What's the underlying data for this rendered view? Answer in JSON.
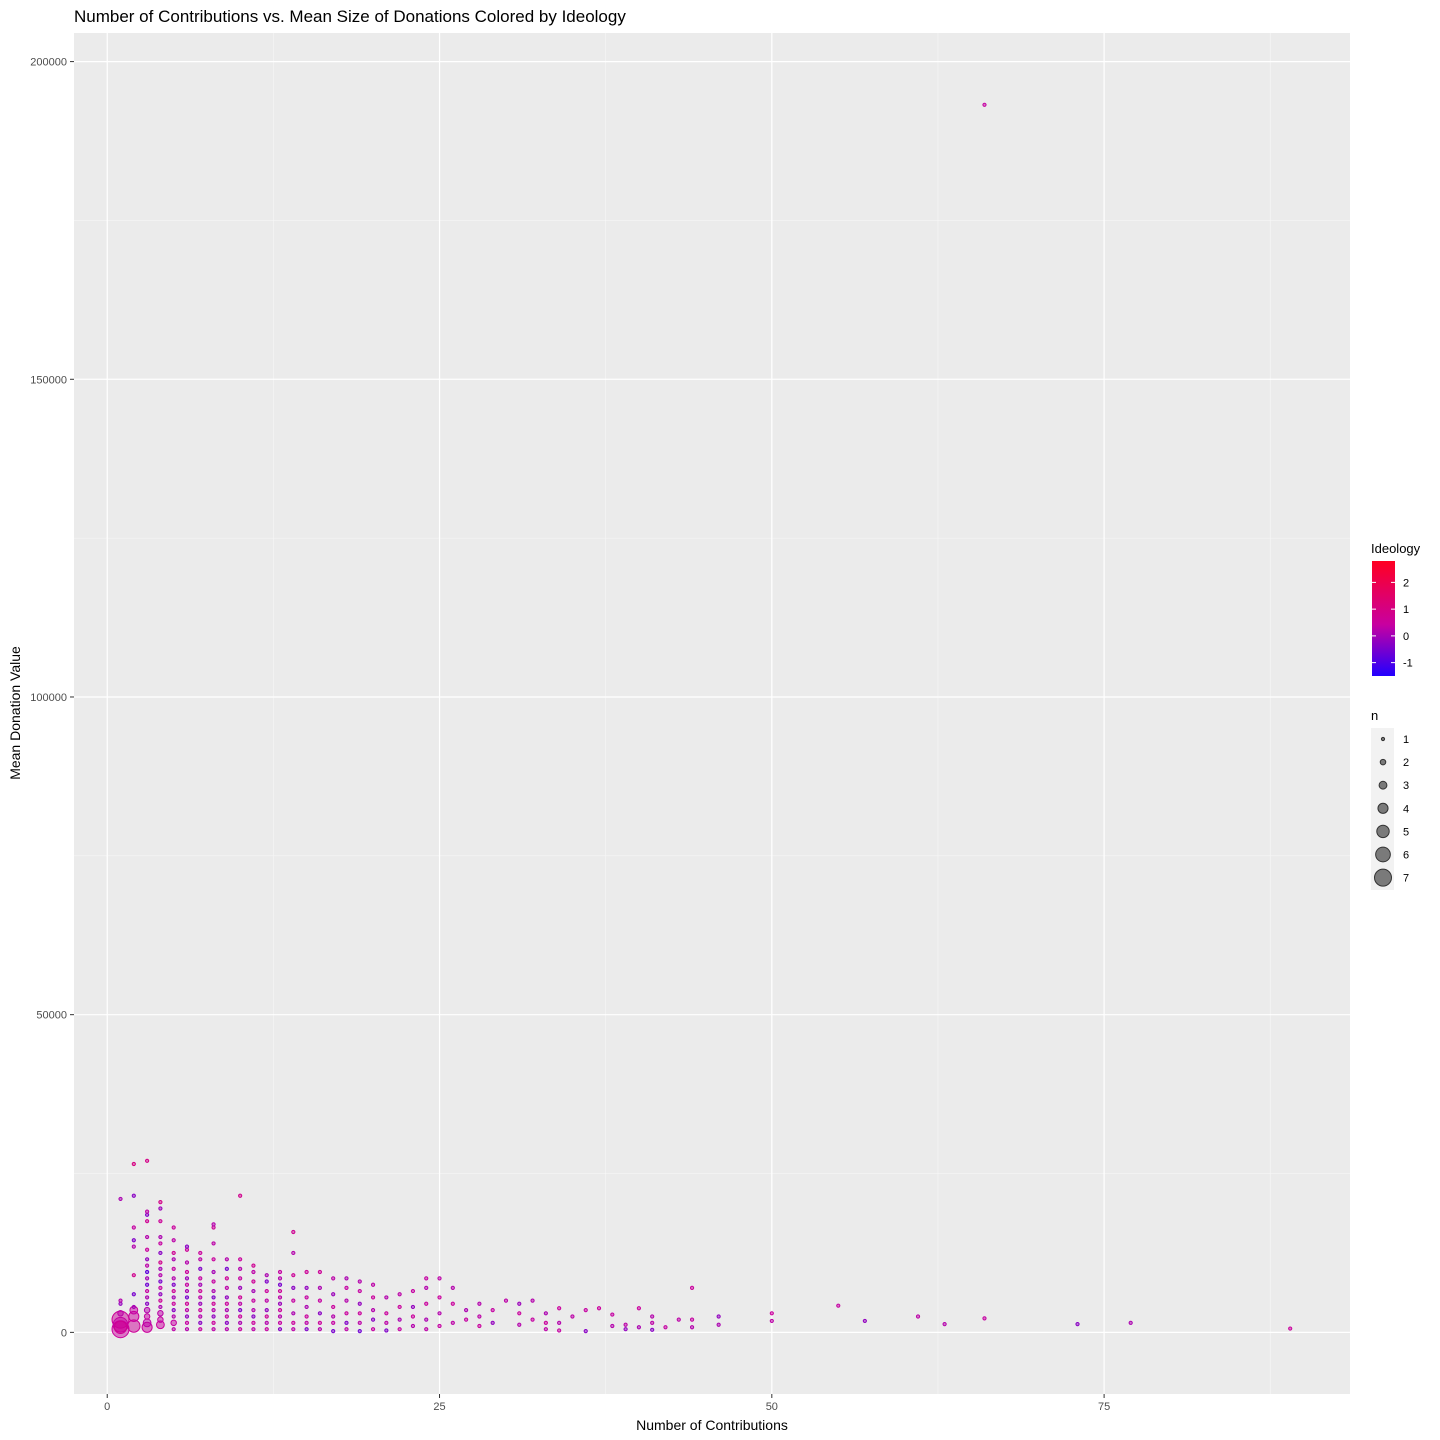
{
  "chart_data": {
    "type": "scatter",
    "title": "Number of Contributions vs. Mean Size of Donations Colored by Ideology",
    "xlabel": "Number of Contributions",
    "ylabel": "Mean Donation Value",
    "xlim": [
      -2.5,
      93.5
    ],
    "ylim": [
      -9700,
      204500
    ],
    "x_ticks": [
      0,
      25,
      50,
      75
    ],
    "y_ticks": [
      0,
      50000,
      100000,
      150000,
      200000
    ],
    "x_tick_labels": [
      "0",
      "25",
      "50",
      "75"
    ],
    "y_tick_labels": [
      "0",
      "50000",
      "100000",
      "150000",
      "200000"
    ],
    "grid": true,
    "background": "#ebebeb",
    "legend_position": "right",
    "color_legend": {
      "title": "Ideology",
      "range": [
        -1.5,
        2.8
      ],
      "ticks": [
        2,
        1,
        0,
        -1
      ],
      "tick_labels": [
        "2",
        "1",
        "0",
        "-1"
      ],
      "low_color": "#2200ff",
      "mid_color": "#c800a0",
      "high_color": "#ff0022"
    },
    "size_legend": {
      "title": "n",
      "values": [
        1,
        2,
        3,
        4,
        5,
        6,
        7
      ],
      "labels": [
        "1",
        "2",
        "3",
        "4",
        "5",
        "6",
        "7"
      ]
    },
    "points": [
      [
        1,
        2000,
        0.6,
        7
      ],
      [
        1,
        500,
        0.5,
        7
      ],
      [
        1,
        1200,
        0.4,
        6
      ],
      [
        1,
        800,
        0.7,
        5
      ],
      [
        1,
        3000,
        0.3,
        2
      ],
      [
        1,
        4500,
        -0.2,
        1
      ],
      [
        1,
        5000,
        0.2,
        1
      ],
      [
        1,
        21000,
        0.1,
        1
      ],
      [
        2,
        1000,
        0.6,
        5
      ],
      [
        2,
        2500,
        0.5,
        4
      ],
      [
        2,
        3500,
        0.4,
        3
      ],
      [
        2,
        4000,
        0.0,
        1
      ],
      [
        2,
        6000,
        -0.5,
        1
      ],
      [
        2,
        9000,
        0.8,
        1
      ],
      [
        2,
        13500,
        0.2,
        1
      ],
      [
        2,
        14500,
        -0.4,
        1
      ],
      [
        2,
        16500,
        0.4,
        1
      ],
      [
        2,
        21500,
        -0.3,
        1
      ],
      [
        2,
        26500,
        1.0,
        1
      ],
      [
        3,
        800,
        0.5,
        4
      ],
      [
        3,
        1500,
        0.3,
        3
      ],
      [
        3,
        2500,
        0.4,
        2
      ],
      [
        3,
        3500,
        0.2,
        2
      ],
      [
        3,
        4500,
        -0.3,
        1
      ],
      [
        3,
        5500,
        0.1,
        1
      ],
      [
        3,
        6500,
        0.4,
        1
      ],
      [
        3,
        7500,
        -0.6,
        1
      ],
      [
        3,
        8500,
        0.0,
        1
      ],
      [
        3,
        9500,
        -0.8,
        1
      ],
      [
        3,
        10500,
        0.3,
        1
      ],
      [
        3,
        11500,
        -0.2,
        1
      ],
      [
        3,
        13000,
        0.5,
        1
      ],
      [
        3,
        15000,
        0.2,
        1
      ],
      [
        3,
        17500,
        0.7,
        1
      ],
      [
        3,
        18500,
        -0.4,
        1
      ],
      [
        3,
        19000,
        0.3,
        1
      ],
      [
        3,
        27000,
        0.9,
        1
      ],
      [
        4,
        1200,
        0.5,
        3
      ],
      [
        4,
        2000,
        0.4,
        2
      ],
      [
        4,
        3000,
        0.3,
        2
      ],
      [
        4,
        4000,
        0.1,
        1
      ],
      [
        4,
        5000,
        0.6,
        1
      ],
      [
        4,
        6000,
        -0.2,
        1
      ],
      [
        4,
        7000,
        0.4,
        1
      ],
      [
        4,
        8000,
        -0.5,
        1
      ],
      [
        4,
        9000,
        0.2,
        1
      ],
      [
        4,
        10000,
        0.0,
        1
      ],
      [
        4,
        11000,
        0.8,
        1
      ],
      [
        4,
        12500,
        -0.3,
        1
      ],
      [
        4,
        14000,
        0.4,
        1
      ],
      [
        4,
        15000,
        0.1,
        1
      ],
      [
        4,
        17500,
        0.6,
        1
      ],
      [
        4,
        19500,
        -0.1,
        1
      ],
      [
        4,
        20500,
        0.9,
        1
      ],
      [
        5,
        500,
        0.3,
        1
      ],
      [
        5,
        1500,
        0.4,
        2
      ],
      [
        5,
        2500,
        0.2,
        1
      ],
      [
        5,
        3500,
        -0.3,
        1
      ],
      [
        5,
        4500,
        0.5,
        1
      ],
      [
        5,
        5500,
        0.0,
        1
      ],
      [
        5,
        6500,
        0.6,
        1
      ],
      [
        5,
        7500,
        -0.4,
        1
      ],
      [
        5,
        8500,
        0.2,
        1
      ],
      [
        5,
        10000,
        0.4,
        1
      ],
      [
        5,
        11500,
        0.1,
        1
      ],
      [
        5,
        12500,
        0.7,
        1
      ],
      [
        5,
        14500,
        0.3,
        1
      ],
      [
        5,
        16500,
        0.5,
        1
      ],
      [
        6,
        500,
        0.2,
        1
      ],
      [
        6,
        1500,
        0.4,
        1
      ],
      [
        6,
        2500,
        -0.2,
        1
      ],
      [
        6,
        3500,
        0.3,
        1
      ],
      [
        6,
        4500,
        0.6,
        1
      ],
      [
        6,
        5500,
        -0.5,
        1
      ],
      [
        6,
        6500,
        0.1,
        1
      ],
      [
        6,
        7500,
        0.4,
        1
      ],
      [
        6,
        8500,
        -0.1,
        1
      ],
      [
        6,
        9500,
        0.5,
        1
      ],
      [
        6,
        11000,
        0.2,
        1
      ],
      [
        6,
        13000,
        0.6,
        1
      ],
      [
        6,
        13500,
        -0.3,
        1
      ],
      [
        7,
        500,
        0.4,
        1
      ],
      [
        7,
        1500,
        -0.3,
        1
      ],
      [
        7,
        2500,
        0.2,
        1
      ],
      [
        7,
        3500,
        0.5,
        1
      ],
      [
        7,
        4500,
        -0.1,
        1
      ],
      [
        7,
        5500,
        0.3,
        1
      ],
      [
        7,
        6500,
        0.6,
        1
      ],
      [
        7,
        7500,
        0.0,
        1
      ],
      [
        7,
        8500,
        0.4,
        1
      ],
      [
        7,
        10000,
        -0.4,
        1
      ],
      [
        7,
        11500,
        0.3,
        1
      ],
      [
        7,
        12500,
        0.5,
        1
      ],
      [
        8,
        500,
        0.3,
        1
      ],
      [
        8,
        1500,
        0.5,
        1
      ],
      [
        8,
        2500,
        -0.2,
        1
      ],
      [
        8,
        3500,
        0.2,
        1
      ],
      [
        8,
        4500,
        0.6,
        1
      ],
      [
        8,
        5500,
        -0.4,
        1
      ],
      [
        8,
        6500,
        0.1,
        1
      ],
      [
        8,
        8000,
        0.4,
        1
      ],
      [
        8,
        9500,
        0.0,
        1
      ],
      [
        8,
        11500,
        0.5,
        1
      ],
      [
        8,
        14000,
        0.3,
        1
      ],
      [
        8,
        16500,
        0.6,
        1
      ],
      [
        8,
        17000,
        0.2,
        1
      ],
      [
        9,
        500,
        0.2,
        1
      ],
      [
        9,
        1500,
        -0.3,
        1
      ],
      [
        9,
        2500,
        0.4,
        1
      ],
      [
        9,
        3500,
        0.1,
        1
      ],
      [
        9,
        4500,
        0.5,
        1
      ],
      [
        9,
        5500,
        -0.2,
        1
      ],
      [
        9,
        7000,
        0.3,
        1
      ],
      [
        9,
        8500,
        0.6,
        1
      ],
      [
        9,
        10000,
        -0.5,
        1
      ],
      [
        9,
        11500,
        0.2,
        1
      ],
      [
        10,
        500,
        0.4,
        1
      ],
      [
        10,
        1500,
        0.1,
        1
      ],
      [
        10,
        2500,
        0.5,
        1
      ],
      [
        10,
        3500,
        -0.4,
        1
      ],
      [
        10,
        4500,
        0.3,
        1
      ],
      [
        10,
        5500,
        0.6,
        1
      ],
      [
        10,
        7000,
        -0.1,
        1
      ],
      [
        10,
        8500,
        0.4,
        1
      ],
      [
        10,
        10000,
        0.2,
        1
      ],
      [
        10,
        11500,
        0.5,
        1
      ],
      [
        10,
        21500,
        0.8,
        1
      ],
      [
        11,
        500,
        0.3,
        1
      ],
      [
        11,
        1500,
        0.5,
        1
      ],
      [
        11,
        2500,
        -0.3,
        1
      ],
      [
        11,
        3500,
        0.2,
        1
      ],
      [
        11,
        5000,
        0.4,
        1
      ],
      [
        11,
        6500,
        0.0,
        1
      ],
      [
        11,
        8000,
        0.6,
        1
      ],
      [
        11,
        9500,
        0.3,
        1
      ],
      [
        11,
        10500,
        0.7,
        1
      ],
      [
        12,
        500,
        0.4,
        1
      ],
      [
        12,
        1500,
        0.2,
        1
      ],
      [
        12,
        2500,
        0.6,
        1
      ],
      [
        12,
        3500,
        -0.2,
        1
      ],
      [
        12,
        5000,
        0.3,
        1
      ],
      [
        12,
        6500,
        0.5,
        1
      ],
      [
        12,
        8000,
        -0.4,
        1
      ],
      [
        12,
        9000,
        0.1,
        1
      ],
      [
        13,
        500,
        -0.3,
        1
      ],
      [
        13,
        1500,
        0.4,
        1
      ],
      [
        13,
        2500,
        0.2,
        1
      ],
      [
        13,
        3500,
        0.5,
        1
      ],
      [
        13,
        4500,
        -0.1,
        1
      ],
      [
        13,
        5500,
        0.3,
        1
      ],
      [
        13,
        6500,
        0.6,
        1
      ],
      [
        13,
        7500,
        -0.5,
        1
      ],
      [
        13,
        8500,
        0.2,
        1
      ],
      [
        13,
        9500,
        0.4,
        1
      ],
      [
        14,
        500,
        0.3,
        1
      ],
      [
        14,
        1500,
        0.5,
        1
      ],
      [
        14,
        3000,
        0.1,
        1
      ],
      [
        14,
        5000,
        0.4,
        1
      ],
      [
        14,
        7000,
        -0.3,
        1
      ],
      [
        14,
        9000,
        0.6,
        1
      ],
      [
        14,
        12500,
        0.2,
        1
      ],
      [
        14,
        15800,
        0.7,
        1
      ],
      [
        15,
        500,
        -0.4,
        1
      ],
      [
        15,
        1500,
        0.3,
        1
      ],
      [
        15,
        2500,
        0.5,
        1
      ],
      [
        15,
        4000,
        0.1,
        1
      ],
      [
        15,
        5500,
        0.4,
        1
      ],
      [
        15,
        7000,
        -0.2,
        1
      ],
      [
        15,
        9500,
        0.6,
        1
      ],
      [
        16,
        500,
        0.2,
        1
      ],
      [
        16,
        1500,
        0.5,
        1
      ],
      [
        16,
        3000,
        -0.3,
        1
      ],
      [
        16,
        5000,
        0.4,
        1
      ],
      [
        16,
        7000,
        0.1,
        1
      ],
      [
        16,
        9500,
        0.6,
        1
      ],
      [
        17,
        200,
        -0.5,
        1
      ],
      [
        17,
        1500,
        0.4,
        1
      ],
      [
        17,
        2500,
        0.2,
        1
      ],
      [
        17,
        4000,
        0.5,
        1
      ],
      [
        17,
        6000,
        -0.1,
        1
      ],
      [
        17,
        8500,
        0.3,
        1
      ],
      [
        18,
        500,
        0.3,
        1
      ],
      [
        18,
        1500,
        -0.4,
        1
      ],
      [
        18,
        3000,
        0.5,
        1
      ],
      [
        18,
        5000,
        0.2,
        1
      ],
      [
        18,
        7000,
        0.4,
        1
      ],
      [
        18,
        8500,
        0.1,
        1
      ],
      [
        19,
        200,
        -0.6,
        1
      ],
      [
        19,
        1500,
        0.3,
        1
      ],
      [
        19,
        3000,
        0.5,
        1
      ],
      [
        19,
        4500,
        -0.2,
        1
      ],
      [
        19,
        6500,
        0.4,
        1
      ],
      [
        19,
        8000,
        0.2,
        1
      ],
      [
        20,
        500,
        0.4,
        1
      ],
      [
        20,
        2000,
        -0.3,
        1
      ],
      [
        20,
        3500,
        0.2,
        1
      ],
      [
        20,
        5500,
        0.5,
        1
      ],
      [
        20,
        7500,
        0.3,
        1
      ],
      [
        21,
        300,
        -0.4,
        1
      ],
      [
        21,
        1500,
        0.3,
        1
      ],
      [
        21,
        3000,
        0.5,
        1
      ],
      [
        21,
        5500,
        0.2,
        1
      ],
      [
        22,
        500,
        0.4,
        1
      ],
      [
        22,
        2000,
        0.1,
        1
      ],
      [
        22,
        4000,
        0.5,
        1
      ],
      [
        22,
        6000,
        0.3,
        1
      ],
      [
        23,
        1000,
        0.2,
        1
      ],
      [
        23,
        2500,
        0.5,
        1
      ],
      [
        23,
        4000,
        -0.2,
        1
      ],
      [
        23,
        6500,
        0.4,
        1
      ],
      [
        24,
        500,
        0.3,
        1
      ],
      [
        24,
        2000,
        0.1,
        1
      ],
      [
        24,
        4500,
        0.5,
        1
      ],
      [
        24,
        7000,
        0.2,
        1
      ],
      [
        24,
        8500,
        0.4,
        1
      ],
      [
        25,
        1000,
        0.4,
        1
      ],
      [
        25,
        3000,
        0.2,
        1
      ],
      [
        25,
        5500,
        0.5,
        1
      ],
      [
        25,
        8500,
        0.3,
        1
      ],
      [
        26,
        1500,
        0.3,
        1
      ],
      [
        26,
        4500,
        0.5,
        1
      ],
      [
        26,
        7000,
        0.2,
        1
      ],
      [
        27,
        2000,
        0.4,
        1
      ],
      [
        27,
        3500,
        0.1,
        1
      ],
      [
        28,
        1000,
        0.5,
        1
      ],
      [
        28,
        2500,
        0.3,
        1
      ],
      [
        28,
        4500,
        0.2,
        1
      ],
      [
        29,
        1500,
        -0.2,
        1
      ],
      [
        29,
        3500,
        0.4,
        1
      ],
      [
        30,
        5000,
        0.3,
        1
      ],
      [
        31,
        1200,
        0.2,
        1
      ],
      [
        31,
        3000,
        0.5,
        1
      ],
      [
        31,
        4500,
        -0.1,
        1
      ],
      [
        32,
        2000,
        0.4,
        1
      ],
      [
        32,
        5000,
        0.2,
        1
      ],
      [
        33,
        500,
        0.3,
        1
      ],
      [
        33,
        1500,
        0.5,
        1
      ],
      [
        33,
        3000,
        0.1,
        1
      ],
      [
        34,
        300,
        0.4,
        1
      ],
      [
        34,
        1500,
        0.2,
        1
      ],
      [
        34,
        3800,
        0.5,
        1
      ],
      [
        35,
        2500,
        0.3,
        1
      ],
      [
        36,
        200,
        -0.3,
        1
      ],
      [
        36,
        3500,
        0.4,
        1
      ],
      [
        37,
        3800,
        0.5,
        1
      ],
      [
        38,
        1000,
        0.2,
        1
      ],
      [
        38,
        2800,
        0.4,
        1
      ],
      [
        39,
        500,
        -0.2,
        1
      ],
      [
        39,
        1200,
        0.3,
        1
      ],
      [
        40,
        800,
        0.1,
        1
      ],
      [
        40,
        3800,
        0.5,
        1
      ],
      [
        41,
        400,
        -0.3,
        1
      ],
      [
        41,
        1500,
        0.3,
        1
      ],
      [
        41,
        2500,
        0.2,
        1
      ],
      [
        42,
        800,
        0.4,
        1
      ],
      [
        43,
        2000,
        0.3,
        1
      ],
      [
        44,
        800,
        0.2,
        1
      ],
      [
        44,
        2000,
        0.4,
        1
      ],
      [
        44,
        7000,
        0.5,
        1
      ],
      [
        46,
        1200,
        0.1,
        1
      ],
      [
        46,
        2500,
        -0.2,
        1
      ],
      [
        50,
        1800,
        0.3,
        1
      ],
      [
        50,
        3000,
        0.5,
        1
      ],
      [
        55,
        4200,
        0.4,
        1
      ],
      [
        57,
        1800,
        -0.2,
        1
      ],
      [
        61,
        2500,
        0.3,
        1
      ],
      [
        63,
        1300,
        0.2,
        1
      ],
      [
        66,
        2200,
        0.4,
        1
      ],
      [
        66,
        193200,
        0.4,
        1
      ],
      [
        73,
        1300,
        -0.3,
        1
      ],
      [
        77,
        1500,
        0.1,
        1
      ],
      [
        89,
        600,
        0.5,
        1
      ]
    ]
  }
}
